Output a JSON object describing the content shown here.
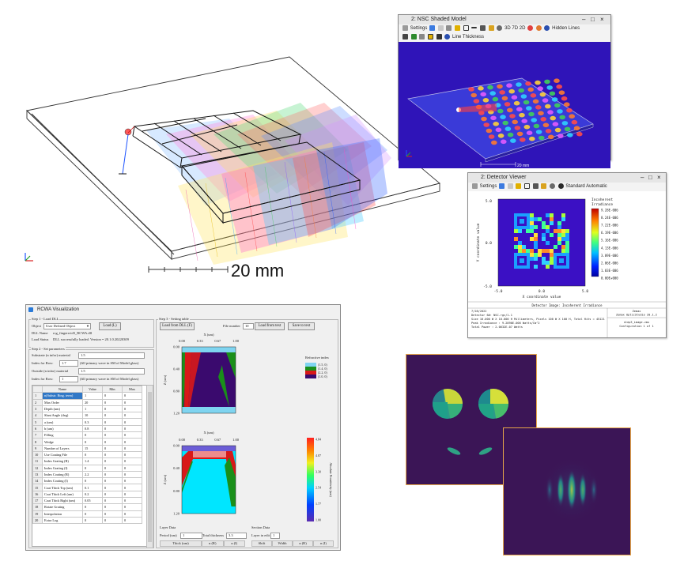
{
  "raytrace": {
    "scale_label": "20 mm"
  },
  "shaded_model": {
    "title": "2: NSC Shaded Model",
    "settings_label": "Settings",
    "toolbar_text": "3D 7D 2D",
    "hidden_lines_label": "Hidden Lines",
    "line_thickness_label": "Line Thickness",
    "scale_label": "20 mm"
  },
  "detector_viewer": {
    "title": "2: Detector Viewer",
    "settings_label": "Settings",
    "toolbar_text": "Standard",
    "toolbar_text2": "Automatic",
    "colorbar_title": [
      "Incoherent",
      "Irradiance"
    ],
    "colorbar_ticks": [
      "9.28E-006",
      "8.24E-006",
      "7.22E-006",
      "6.19E-006",
      "5.16E-006",
      "4.13E-006",
      "3.09E-006",
      "2.06E-006",
      "1.03E-006",
      "0.00E+000"
    ],
    "y_axis_label": "Y coordinate value",
    "x_axis_label": "X coordinate value",
    "y_ticks": [
      "5.0",
      "0.0",
      "-5.0"
    ],
    "x_ticks": [
      "-5.0",
      "0.0",
      "5.0"
    ],
    "footer_header": "Detector Image: Incoherent Irradiance",
    "footer_lines": [
      "7/28/2022",
      "Detector 6#: NSC.rgc/1.1",
      "Size 10.000 W X 10.000 H Millimeters, Pixels 100 W X 100 H, Total Hits = 45121",
      "Peak Irradiance : 9.2890E-006 Watts/Cm^2",
      "Total Power     : 2.0632E-07 Watts"
    ],
    "footer_right": [
      "Zemax",
      "Zemax OpticStudio 20.1.2",
      "step3_image.zmx",
      "Configuration 1 of 1"
    ]
  },
  "rcwa": {
    "title": "RCWA Visualization",
    "step1": {
      "legend": "Step 1 - Load DLL",
      "object_label": "Object",
      "object_value": "User Defined Object",
      "load_button": "Load (L)",
      "dll_name_label": "DLL Name",
      "dll_name_value": "rcg_fingerrcid3_RCWA.dll",
      "load_status_label": "Load Status",
      "load_status_value": "DLL successfully loaded. Version = 20.1.0.20220309"
    },
    "step2": {
      "legend": "Step 2 - Set parameters",
      "substrate_label": "Substrate (n infor) material",
      "substrate_value": "1.5",
      "inside_label": "Index for Row:",
      "inside_value": "1.7",
      "inside_note": "(fill primary wave in SM of Model glass)",
      "outside_label": "Outside (n infor) material",
      "outside_value": "1.5",
      "index_label": "Index for Row:",
      "index_value": "1",
      "index_note": "(fill primary wave in SM of Model glass)"
    },
    "table": {
      "headers": [
        "",
        "Name",
        "Value",
        "Min",
        "Max"
      ],
      "rows": [
        [
          "1",
          "n(Substr. Rtng. term)",
          "1",
          "0",
          "0"
        ],
        [
          "2",
          "Max Order",
          "20",
          "0",
          "0"
        ],
        [
          "3",
          "Depth (um)",
          "1",
          "0",
          "0"
        ],
        [
          "4",
          "Slant Angle (deg)",
          "10",
          "0",
          "0"
        ],
        [
          "5",
          "a (um)",
          "0.3",
          "0",
          "0"
        ],
        [
          "6",
          "b (um)",
          "0.8",
          "0",
          "0"
        ],
        [
          "7",
          "Filling",
          "0",
          "0",
          "0"
        ],
        [
          "8",
          "Wedge",
          "0",
          "0",
          "0"
        ],
        [
          "9",
          "Number of Layers",
          "15",
          "0",
          "0"
        ],
        [
          "10",
          "Use Coating File",
          "0",
          "0",
          "0"
        ],
        [
          "11",
          "Index Grating (R)",
          "1.4",
          "0",
          "0"
        ],
        [
          "12",
          "Index Grating (I)",
          "0",
          "0",
          "0"
        ],
        [
          "13",
          "Index Coating (R)",
          "2.2",
          "0",
          "0"
        ],
        [
          "14",
          "Index Coating (I)",
          "0",
          "0",
          "0"
        ],
        [
          "15",
          "Coat Thick Top (um)",
          "0.1",
          "0",
          "0"
        ],
        [
          "16",
          "Coat Thick Left (um)",
          "0.2",
          "0",
          "0"
        ],
        [
          "17",
          "Coat Thick Right (um)",
          "0.05",
          "0",
          "0"
        ],
        [
          "18",
          "Rotate Grating",
          "0",
          "0",
          "0"
        ],
        [
          "19",
          "Interpolation",
          "0",
          "0",
          "0"
        ],
        [
          "20",
          "Extra Log",
          "0",
          "0",
          "0"
        ]
      ]
    },
    "step3": {
      "legend": "Step 3 - Setting table",
      "load_dll_button": "Load from DLL (F)",
      "file_number_label": "File number",
      "file_number_value": "10",
      "load_text_button": "Load from text",
      "save_text_button": "Save to text",
      "x_axis_label": "X (um)",
      "x_ticks": [
        "0.00",
        "0.33",
        "0.67",
        "1.00"
      ],
      "z_axis_label": "Z (um)",
      "z_ticks": [
        "0.00",
        "0.40",
        "0.80",
        "1.20"
      ],
      "legend_title": "Refractive index",
      "legend_items": [
        "(1.5, 0)",
        "(1.4, 0)",
        "(2.2, 0)",
        "(1.0, 0)"
      ],
      "legend_colors": [
        "#7fd4f0",
        "#1a8f1a",
        "#d81818",
        "#3a0a6e"
      ],
      "cb_ticks": [
        "4.84",
        "4.07",
        "3.30",
        "2.54",
        "1.77",
        "1.00"
      ],
      "cb_label": "Absolute Permittivity (um)",
      "layer_data_label": "Layer Data",
      "period_label": "Period (um)",
      "period_value": "1",
      "total_thickness_label": "Total thickness",
      "total_thickness_value": "3.3",
      "layer_headers": [
        "Thick (um)",
        "n (R)",
        "n (I)"
      ],
      "section_data_label": "Section Data",
      "layer_index_label": "Layer in edit",
      "layer_index_value": "1",
      "section_headers": [
        "Shift",
        "Width",
        "n (R)",
        "n (I)"
      ]
    }
  },
  "colors": {
    "detector_bg": "#3b10c4",
    "frame_orange": "#e7a64a",
    "viridis_dark": "#3b1556"
  }
}
